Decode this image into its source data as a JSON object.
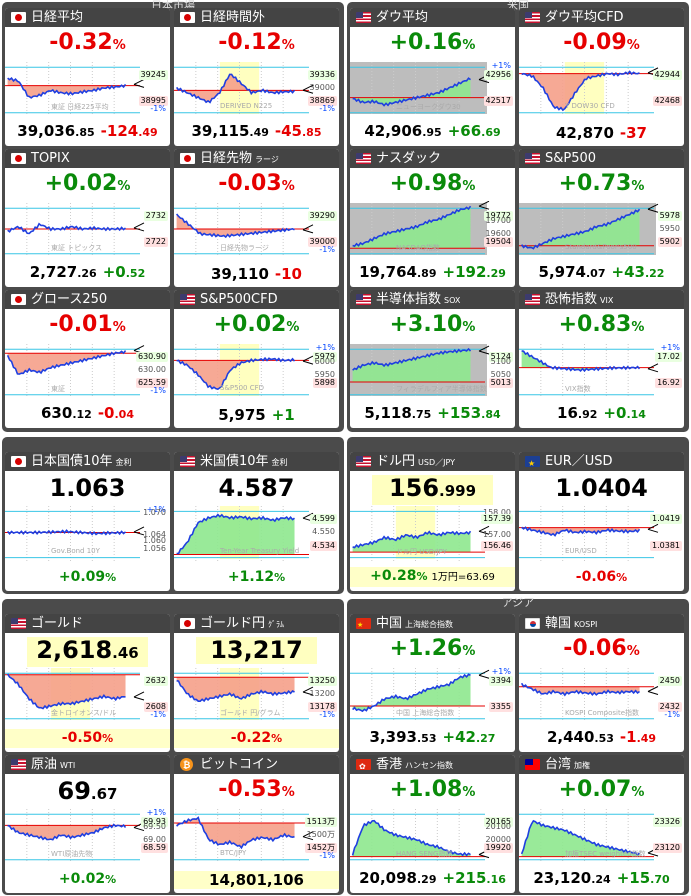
{
  "groups": {
    "japan": "日本市場",
    "us": "米国",
    "asia": "アジア"
  },
  "cards": {
    "nikkei": {
      "name": "日経平均",
      "pct": "-0.32",
      "pct_unit": "%",
      "price_main": "39,036",
      "price_dec": ".85",
      "chg_main": "-124",
      "chg_dec": ".49",
      "hi": "39245",
      "lo": "38995",
      "plus": "",
      "minus": "-1%",
      "wm": "東証 日経225平均"
    },
    "nikkei_after": {
      "name": "日経時間外",
      "pct": "-0.12",
      "pct_unit": "%",
      "price_main": "39,115",
      "price_dec": ".49",
      "chg_main": "-45",
      "chg_dec": ".85",
      "hi": "39336",
      "mid": "39000",
      "lo": "38869",
      "minus": "-1%",
      "wm": "DERIVED N225"
    },
    "dow": {
      "name": "ダウ平均",
      "pct": "+0.16",
      "pct_unit": "%",
      "price_main": "42,906",
      "price_dec": ".95",
      "chg_main": "+66",
      "chg_dec": ".69",
      "hi": "42956",
      "lo": "42517",
      "plus": "+1%",
      "wm": "ニューヨークダウ30"
    },
    "dow_cfd": {
      "name": "ダウ平均CFD",
      "pct": "-0.09",
      "pct_unit": "%",
      "price_main": "42,870",
      "price_dec": "",
      "chg_main": "-37",
      "chg_dec": "",
      "hi": "42944",
      "lo": "42468",
      "wm": "Y DOW30 CFD"
    },
    "topix": {
      "name": "TOPIX",
      "pct": "+0.02",
      "pct_unit": "%",
      "price_main": "2,727",
      "price_dec": ".26",
      "chg_main": "+0",
      "chg_dec": ".52",
      "hi": "2732",
      "lo": "2722",
      "wm": "東証 トピックス"
    },
    "nikkei_fut": {
      "name": "日経先物",
      "sub": "ラージ",
      "pct": "-0.03",
      "pct_unit": "%",
      "price_main": "39,110",
      "price_dec": "",
      "chg_main": "-10",
      "chg_dec": "",
      "hi": "39290",
      "lo": "39000",
      "minus": "-1%",
      "wm": "日経先物ラージ"
    },
    "nasdaq": {
      "name": "ナスダック",
      "pct": "+0.98",
      "pct_unit": "%",
      "price_main": "19,764",
      "price_dec": ".89",
      "chg_main": "+192",
      "chg_dec": ".29",
      "hi": "19772",
      "mid1": "19700",
      "mid2": "19600",
      "lo": "19504",
      "wm": "NASDAQ指数"
    },
    "sp500": {
      "name": "S&P500",
      "pct": "+0.73",
      "pct_unit": "%",
      "price_main": "5,974",
      "price_dec": ".07",
      "chg_main": "+43",
      "chg_dec": ".22",
      "hi": "5978",
      "mid": "5950",
      "lo": "5902",
      "wm": "Standard&Poor's500"
    },
    "growth": {
      "name": "グロース250",
      "pct": "-0.01",
      "pct_unit": "%",
      "price_main": "630",
      "price_dec": ".12",
      "chg_main": "-0",
      "chg_dec": ".04",
      "hi": "630.90",
      "mid": "630.00",
      "lo": "625.59",
      "minus": "-1%",
      "wm": "東証"
    },
    "sp500_cfd": {
      "name": "S&P500CFD",
      "pct": "+0.02",
      "pct_unit": "%",
      "price_main": "5,975",
      "price_dec": "",
      "chg_main": "+1",
      "chg_dec": "",
      "plus": "+1%",
      "mid1": "6000",
      "hi": "5979",
      "mid2": "5950",
      "lo": "5898",
      "wm": "S&P500 CFD"
    },
    "sox": {
      "name": "半導体指数",
      "sub": "SOX",
      "pct": "+3.10",
      "pct_unit": "%",
      "price_main": "5,118",
      "price_dec": ".75",
      "chg_main": "+153",
      "chg_dec": ".84",
      "hi": "5124",
      "mid1": "5100",
      "mid2": "5050",
      "lo": "5013",
      "wm": "フィラデルフィア半導体指数"
    },
    "vix": {
      "name": "恐怖指数",
      "sub": "VIX",
      "pct": "+0.83",
      "pct_unit": "%",
      "price_main": "16",
      "price_dec": ".92",
      "chg_main": "+0",
      "chg_dec": ".14",
      "hi": "17.02",
      "plus": "+1%",
      "lo": "16.92",
      "wm": "VIX指数"
    },
    "jgb10": {
      "name": "日本国債10年",
      "sub": "金利",
      "big_main": "1.063",
      "big_dec": "",
      "chg_main": "+0.09",
      "chg_unit": "%",
      "plus": "+1%",
      "y1": "1.070",
      "y2": "1.064",
      "y3": "1.060",
      "y4": "1.056",
      "wm": "Gov.Bond 10Y"
    },
    "ust10": {
      "name": "米国債10年",
      "sub": "金利",
      "big_main": "4.587",
      "big_dec": "",
      "chg_main": "+1.12",
      "chg_unit": "%",
      "hi": "4.599",
      "mid": "4.550",
      "lo": "4.534",
      "wm": "Ten-Year Treasury Yield"
    },
    "usdjpy": {
      "name": "ドル円",
      "sub": "USD／JPY",
      "big_main": "156",
      "big_dec": ".999",
      "chg_main": "+0.28",
      "chg_unit": "%",
      "extra": "1万円=63.69",
      "y1": "158.00",
      "hi": "157.39",
      "y2": "157.00",
      "lo": "156.46",
      "wm": "ドル円 USD/JPY"
    },
    "eurusd": {
      "name": "EUR／USD",
      "big_main": "1.0404",
      "big_dec": "",
      "chg_main": "-0.06",
      "chg_unit": "%",
      "hi": "1.0419",
      "lo": "1.0381",
      "wm": "EUR/USD"
    },
    "gold": {
      "name": "ゴールド",
      "big_main": "2,618",
      "big_dec": ".46",
      "chg_main": "-0.50",
      "chg_unit": "%",
      "hi": "2632",
      "lo": "2608",
      "minus": "-1%",
      "wm": "金トロイオンス/ドル"
    },
    "gold_jpy": {
      "name": "ゴールド円",
      "sub": "ｸﾞﾗﾑ",
      "big_main": "13,217",
      "big_dec": "",
      "chg_main": "-0.22",
      "chg_unit": "%",
      "hi": "13250",
      "mid": "13200",
      "lo": "13178",
      "minus": "-1%",
      "wm": "ゴールド 円/グラム"
    },
    "shanghai": {
      "name": "中国",
      "sub": "上海総合指数",
      "pct": "+1.26",
      "pct_unit": "%",
      "price_main": "3,393",
      "price_dec": ".53",
      "chg_main": "+42",
      "chg_dec": ".27",
      "hi": "3394",
      "plus": "+1%",
      "lo": "3355",
      "wm": "中国 上海総合指数"
    },
    "kospi": {
      "name": "韓国",
      "sub": "KOSPI",
      "pct": "-0.06",
      "pct_unit": "%",
      "price_main": "2,440",
      "price_dec": ".53",
      "chg_main": "-1",
      "chg_dec": ".49",
      "hi": "2450",
      "lo": "2432",
      "minus": "-1%",
      "wm": "KOSPI Composite指数"
    },
    "wti": {
      "name": "原油",
      "sub": "WTI",
      "big_main": "69",
      "big_dec": ".67",
      "chg_main": "+0.02",
      "chg_unit": "%",
      "plus": "+1%",
      "hi": "69.93",
      "mid1": "69.50",
      "mid2": "69.00",
      "lo": "68.59",
      "wm": "WTI原油先物"
    },
    "bitcoin": {
      "name": "ビットコイン",
      "pct": "-0.53",
      "pct_unit": "%",
      "big_main": "14,801,106",
      "hi": "1513万",
      "mid": "1500万",
      "lo": "1452万",
      "minus": "-1%",
      "wm": "BTC/JPY"
    },
    "hangseng": {
      "name": "香港",
      "sub": "ハンセン指数",
      "pct": "+1.08",
      "pct_unit": "%",
      "price_main": "20,098",
      "price_dec": ".29",
      "chg_main": "+215",
      "chg_dec": ".16",
      "hi": "20165",
      "mid1": "20100",
      "mid2": "20000",
      "lo": "19920",
      "wm": "HANG SENG指数"
    },
    "taiwan": {
      "name": "台湾",
      "sub": "加権",
      "pct": "+0.07",
      "pct_unit": "%",
      "price_main": "23,120",
      "price_dec": ".24",
      "chg_main": "+15",
      "chg_dec": ".70",
      "hi": "23326",
      "lo": "23120",
      "wm": "加権TSEC weighted指数"
    }
  },
  "colors": {
    "up": "#0a8a0a",
    "down": "#e60000",
    "header": "#444444",
    "group": "#4b4b4b",
    "pos_area": "#8ee88e",
    "neg_area": "#f5a08a",
    "line": "#1f3fe0"
  }
}
